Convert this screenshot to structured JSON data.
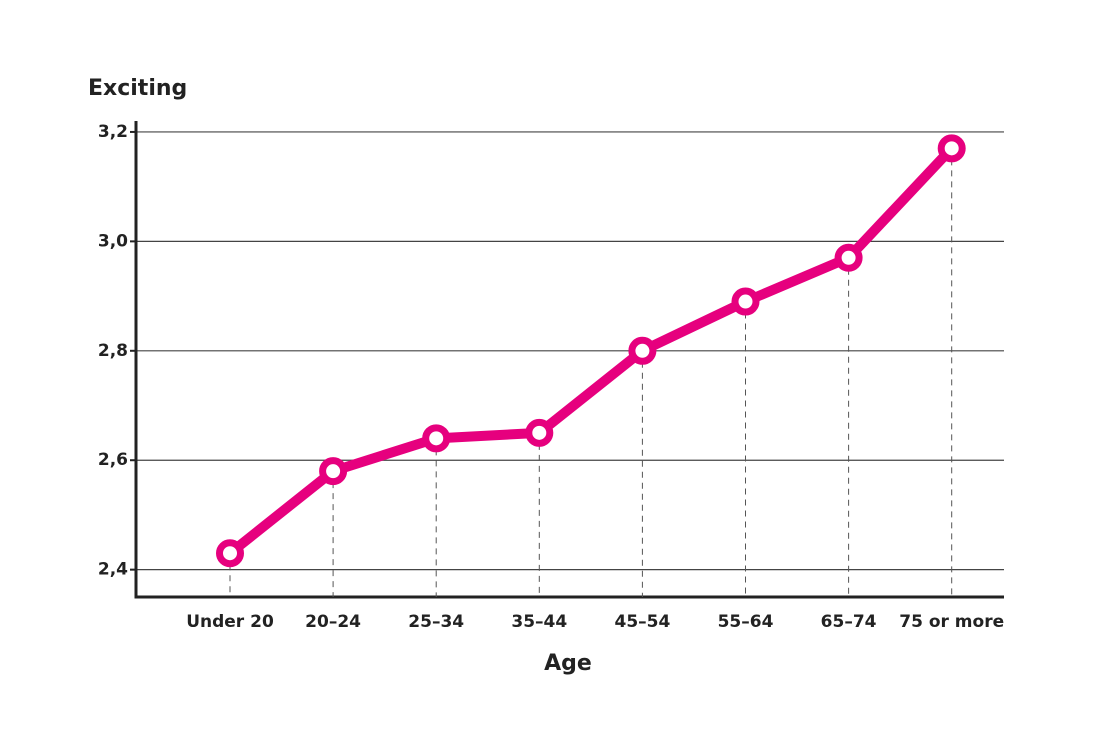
{
  "chart_data": {
    "type": "line",
    "y_label": "Exciting",
    "x_label": "Age",
    "categories": [
      "Under 20",
      "20–24",
      "25–34",
      "35–44",
      "45–54",
      "55–64",
      "65–74",
      "75 or more"
    ],
    "series": [
      {
        "name": "Exciting",
        "color": "#e6007e",
        "values": [
          2.43,
          2.58,
          2.64,
          2.65,
          2.8,
          2.89,
          2.97,
          3.17
        ]
      }
    ],
    "ylim": [
      2.35,
      3.22
    ],
    "yticks": [
      {
        "value": 2.4,
        "label": "2,4"
      },
      {
        "value": 2.6,
        "label": "2,6"
      },
      {
        "value": 2.8,
        "label": "2,8"
      },
      {
        "value": 3.0,
        "label": "3,0"
      },
      {
        "value": 3.2,
        "label": "3,2"
      }
    ],
    "grid": true
  }
}
